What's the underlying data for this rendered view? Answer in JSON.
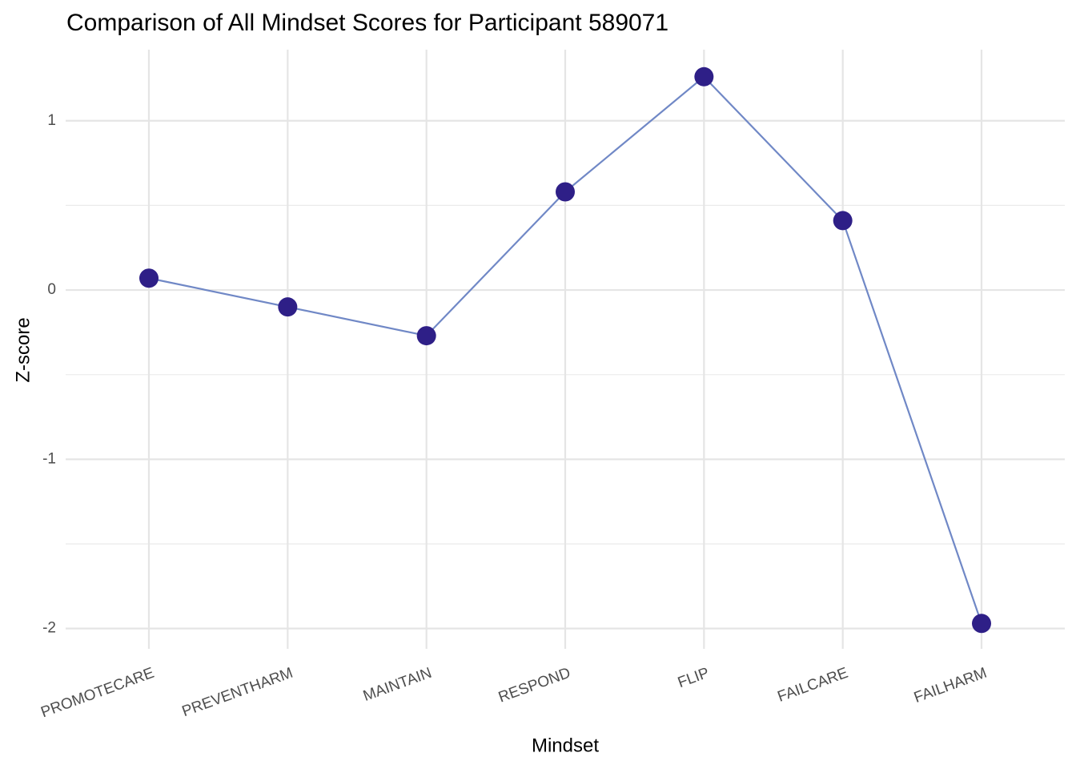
{
  "chart_data": {
    "type": "line",
    "title": "Comparison of All Mindset Scores for Participant 589071",
    "x_label": "Mindset",
    "y_label": "Z-score",
    "categories": [
      "PROMOTECARE",
      "PREVENTHARM",
      "MAINTAIN",
      "RESPOND",
      "FLIP",
      "FAILCARE",
      "FAILHARM"
    ],
    "values": [
      0.07,
      -0.1,
      -0.27,
      0.58,
      1.26,
      0.41,
      -1.97
    ],
    "line_color": "#7088c6",
    "point_color": "#2e1f87",
    "ylim": [
      -2.12,
      1.42
    ],
    "yticks": [
      -2,
      -1,
      0,
      1
    ],
    "yminor": [
      -1.5,
      -0.5,
      0.5
    ],
    "grid": true
  }
}
